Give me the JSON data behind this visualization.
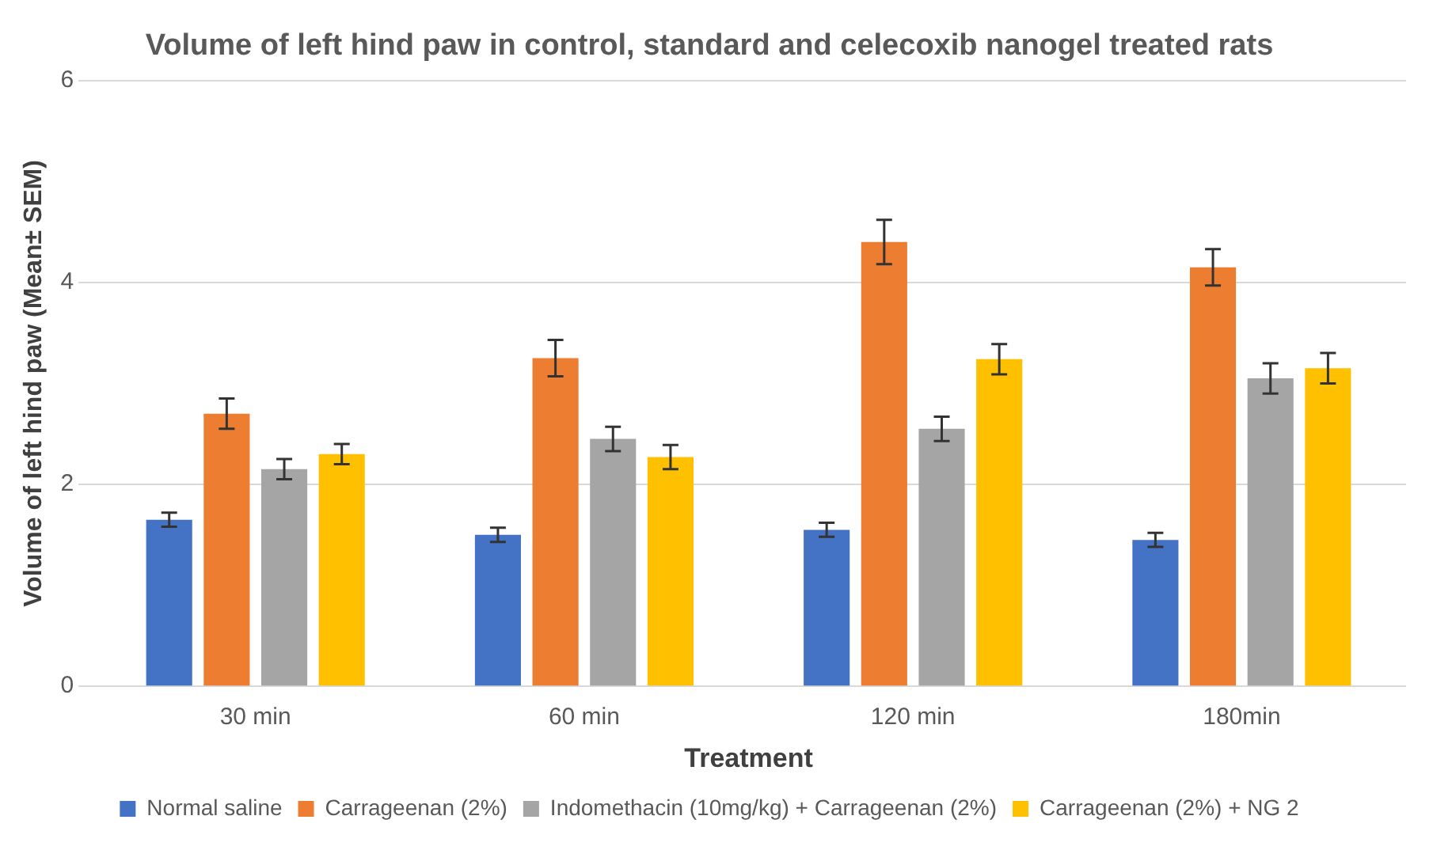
{
  "chart_data": {
    "type": "bar",
    "title": "Volume of left hind paw in control, standard and celecoxib nanogel treated rats",
    "xlabel": "Treatment",
    "ylabel": "Volume of left hind paw (Mean± SEM)",
    "categories": [
      "30 min",
      "60 min",
      "120 min",
      "180min"
    ],
    "series": [
      {
        "name": "Normal saline",
        "color": "#4472c4",
        "values": [
          1.65,
          1.5,
          1.55,
          1.45
        ],
        "errors": [
          0.07,
          0.07,
          0.07,
          0.07
        ]
      },
      {
        "name": "Carrageenan (2%)",
        "color": "#ed7d31",
        "values": [
          2.7,
          3.25,
          4.4,
          4.15
        ],
        "errors": [
          0.15,
          0.18,
          0.22,
          0.18
        ]
      },
      {
        "name": "Indomethacin (10mg/kg) + Carrageenan (2%)",
        "color": "#a5a5a5",
        "values": [
          2.15,
          2.45,
          2.55,
          3.05
        ],
        "errors": [
          0.1,
          0.12,
          0.12,
          0.15
        ]
      },
      {
        "name": "Carrageenan (2%) + NG 2",
        "color": "#ffc000",
        "values": [
          2.3,
          2.27,
          3.24,
          3.15
        ],
        "errors": [
          0.1,
          0.12,
          0.15,
          0.15
        ]
      }
    ],
    "ylim": [
      0,
      6
    ],
    "yticks": [
      0,
      2,
      4,
      6
    ],
    "grid": "y",
    "legend": "bottom"
  }
}
